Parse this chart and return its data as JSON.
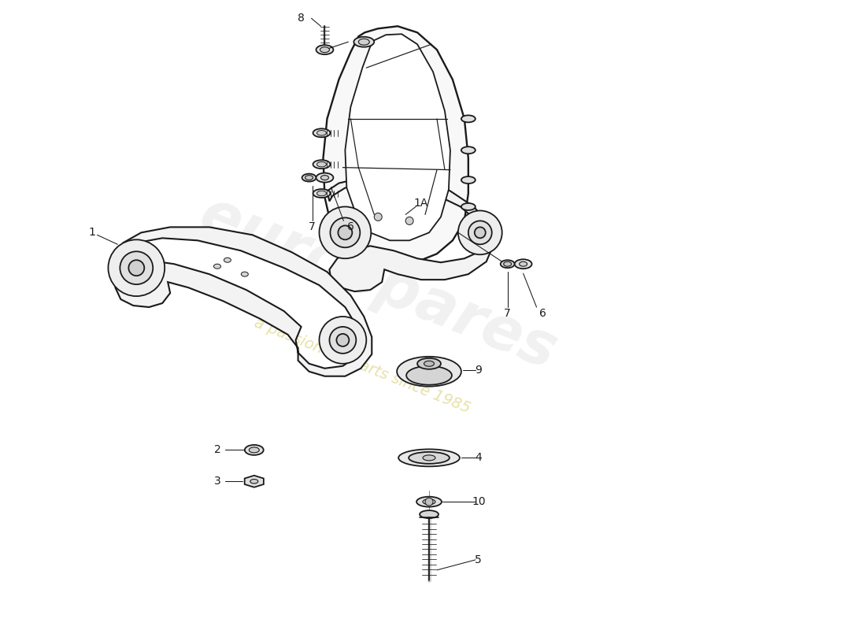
{
  "bg_color": "#ffffff",
  "line_color": "#1a1a1a",
  "lw": 1.3,
  "label_fontsize": 10,
  "watermark_text1": "eurospares",
  "watermark_text2": "a passion for parts since 1985",
  "watermark_color1": "#cccccc",
  "watermark_color2": "#d4c860"
}
